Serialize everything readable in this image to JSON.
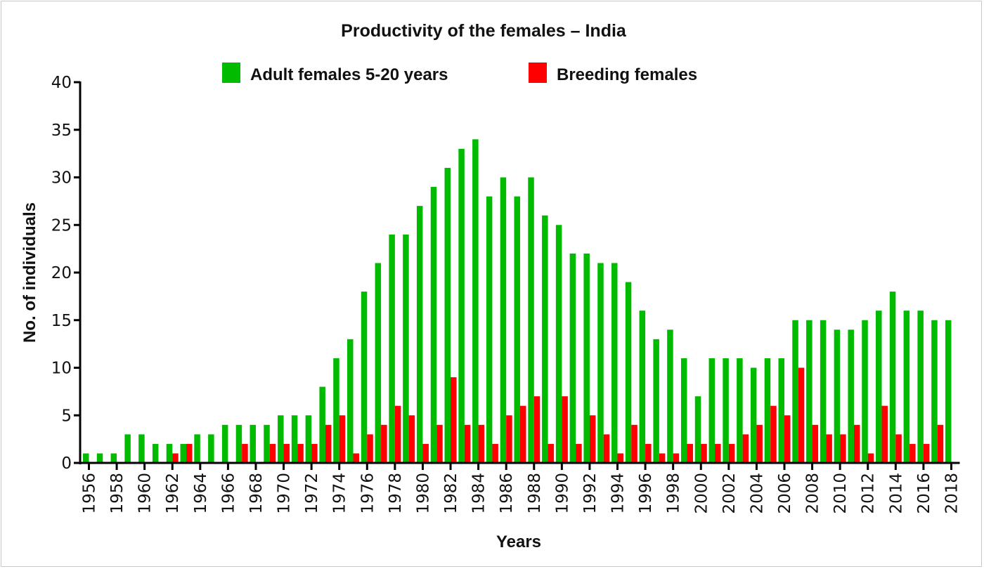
{
  "chart_data": {
    "type": "bar",
    "title": "Productivity of the females – India",
    "xlabel": "Years",
    "ylabel": "No. of individuals",
    "ylim": [
      0,
      40
    ],
    "yticks": [
      "0",
      "5",
      "10",
      "15",
      "20",
      "25",
      "30",
      "35",
      "40"
    ],
    "grid": false,
    "legend_position": "top-center",
    "categories": [
      1956,
      1957,
      1958,
      1959,
      1960,
      1961,
      1962,
      1963,
      1964,
      1965,
      1966,
      1967,
      1968,
      1969,
      1970,
      1971,
      1972,
      1973,
      1974,
      1975,
      1976,
      1977,
      1978,
      1979,
      1980,
      1981,
      1982,
      1983,
      1984,
      1985,
      1986,
      1987,
      1988,
      1989,
      1990,
      1991,
      1992,
      1993,
      1994,
      1995,
      1996,
      1997,
      1998,
      1999,
      2000,
      2001,
      2002,
      2003,
      2004,
      2005,
      2006,
      2007,
      2008,
      2009,
      2010,
      2011,
      2012,
      2013,
      2014,
      2015,
      2016,
      2017,
      2018
    ],
    "xtick_labels": [
      "1956",
      "1958",
      "1960",
      "1962",
      "1964",
      "1966",
      "1968",
      "1970",
      "1972",
      "1974",
      "1976",
      "1978",
      "1980",
      "1982",
      "1984",
      "1986",
      "1988",
      "1990",
      "1992",
      "1994",
      "1996",
      "1998",
      "2000",
      "2002",
      "2004",
      "2006",
      "2008",
      "2010",
      "2012",
      "2014",
      "2016",
      "2018"
    ],
    "series": [
      {
        "name": "Adult females 5-20 years",
        "color": "#00bb00",
        "values": [
          1,
          1,
          1,
          3,
          3,
          2,
          2,
          2,
          3,
          3,
          4,
          4,
          4,
          4,
          5,
          5,
          5,
          8,
          11,
          13,
          18,
          21,
          24,
          24,
          27,
          29,
          31,
          33,
          34,
          28,
          30,
          28,
          30,
          26,
          25,
          22,
          22,
          21,
          21,
          19,
          16,
          13,
          14,
          11,
          7,
          11,
          11,
          11,
          10,
          11,
          11,
          15,
          15,
          15,
          14,
          14,
          15,
          16,
          18,
          16,
          16,
          15,
          15
        ]
      },
      {
        "name": "Breeding females",
        "color": "#ff0000",
        "values": [
          0,
          0,
          0,
          0,
          0,
          0,
          1,
          2,
          0,
          0,
          0,
          2,
          0,
          2,
          2,
          2,
          2,
          4,
          5,
          1,
          3,
          4,
          6,
          5,
          2,
          4,
          9,
          4,
          4,
          2,
          5,
          6,
          7,
          2,
          7,
          2,
          5,
          3,
          1,
          4,
          2,
          1,
          1,
          2,
          2,
          2,
          2,
          3,
          4,
          6,
          5,
          10,
          4,
          3,
          3,
          4,
          1,
          6,
          3,
          2,
          2,
          4,
          0
        ]
      }
    ]
  }
}
